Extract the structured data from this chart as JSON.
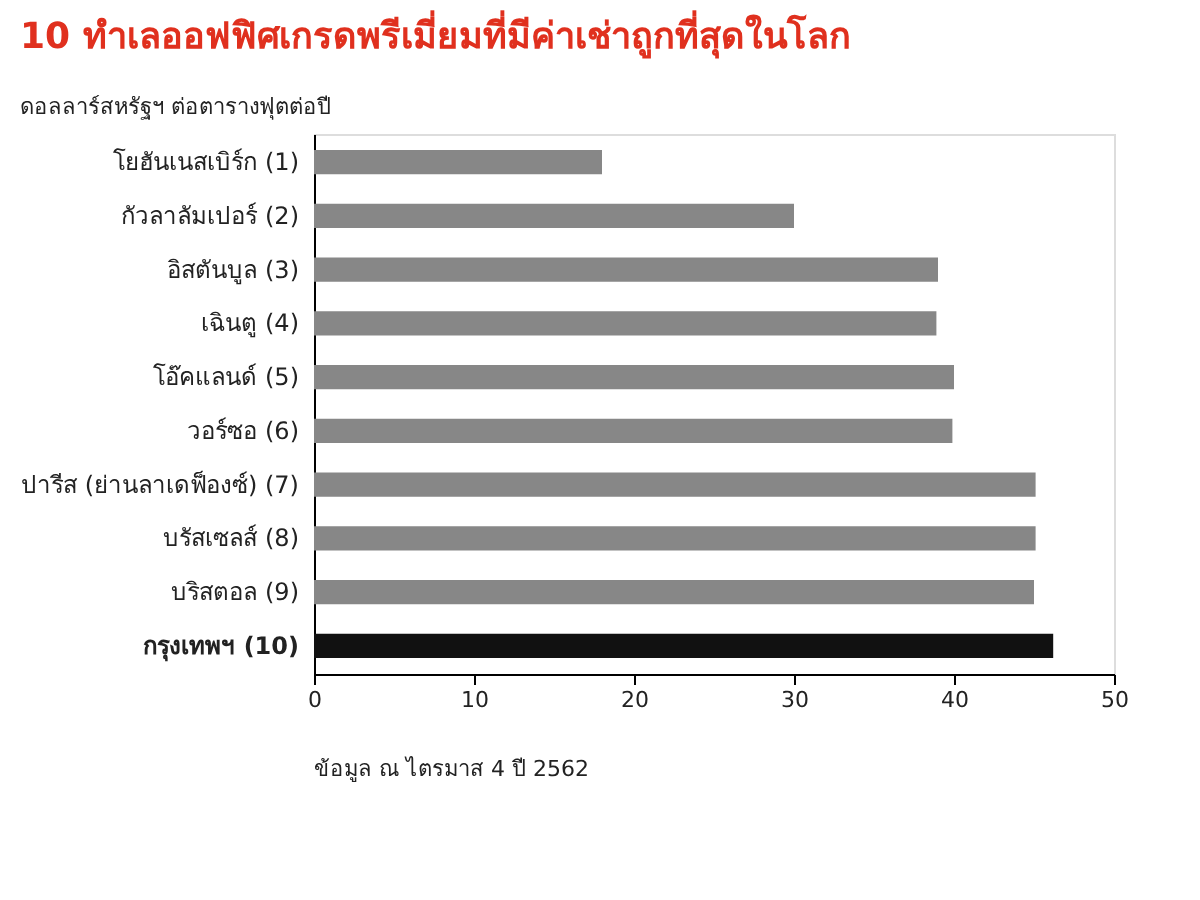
{
  "chart_data": {
    "type": "bar",
    "orientation": "horizontal",
    "title": "10 ทำเลออฟฟิศเกรดพรีเมี่ยมที่มีค่าเช่าถูกที่สุดในโลก",
    "subtitle": "ดอลลาร์สหรัฐฯ ต่อตารางฟุตต่อปี",
    "categories": [
      "โยฮันเนสเบิร์ก (1)",
      "กัวลาลัมเปอร์ (2)",
      "อิสตันบูล (3)",
      "เฉินตู (4)",
      "โอ๊คแลนด์ (5)",
      "วอร์ซอ (6)",
      "ปารีส (ย่านลาเดฟ็องซ์) (7)",
      "บรัสเซลส์ (8)",
      "บริสตอล (9)",
      "กรุงเทพฯ (10)"
    ],
    "values": [
      18,
      30,
      39,
      38.9,
      40,
      39.9,
      45.1,
      45.1,
      45,
      46.2
    ],
    "colors": [
      "#878787",
      "#878787",
      "#878787",
      "#878787",
      "#878787",
      "#878787",
      "#878787",
      "#878787",
      "#878787",
      "#111111"
    ],
    "xlim": [
      0,
      50
    ],
    "xticks": [
      0,
      10,
      20,
      30,
      40,
      50
    ],
    "grid": false,
    "annotations": [
      "ข้อมูล ณ ไตรมาส 4 ปี 2562"
    ]
  }
}
